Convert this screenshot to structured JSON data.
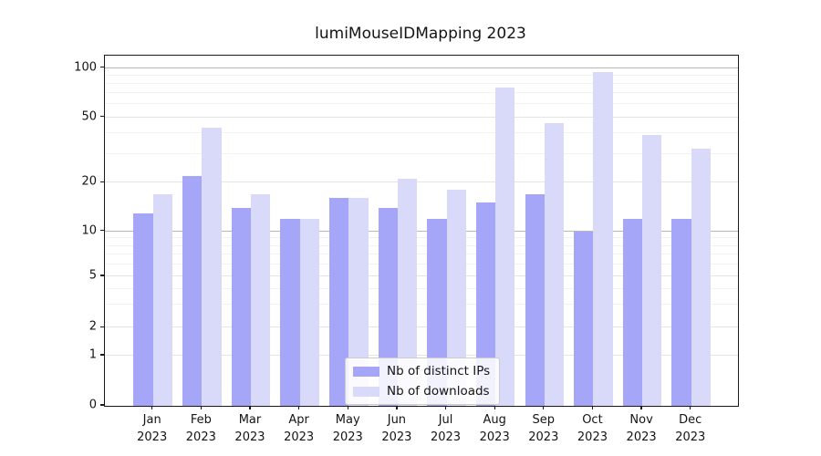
{
  "chart_data": {
    "type": "bar",
    "title": "lumiMouseIDMapping 2023",
    "categories": [
      "Jan 2023",
      "Feb 2023",
      "Mar 2023",
      "Apr 2023",
      "May 2023",
      "Jun 2023",
      "Jul 2023",
      "Aug 2023",
      "Sep 2023",
      "Oct 2023",
      "Nov 2023",
      "Dec 2023"
    ],
    "x_tick_months": [
      "Jan",
      "Feb",
      "Mar",
      "Apr",
      "May",
      "Jun",
      "Jul",
      "Aug",
      "Sep",
      "Oct",
      "Nov",
      "Dec"
    ],
    "x_tick_year": "2023",
    "series": [
      {
        "name": "Nb of distinct IPs",
        "color": "#a6a6f8",
        "values": [
          13,
          22,
          14,
          12,
          16,
          14,
          12,
          15,
          17,
          10,
          12,
          12
        ]
      },
      {
        "name": "Nb of downloads",
        "color": "#d9d9fa",
        "values": [
          17,
          43,
          17,
          12,
          16,
          21,
          18,
          76,
          46,
          95,
          39,
          32
        ]
      }
    ],
    "xlabel": "",
    "ylabel": "",
    "y_scale": "symlog",
    "y_ticks": [
      0,
      1,
      2,
      5,
      10,
      20,
      50,
      100
    ],
    "y_tick_labels": [
      "0",
      "1",
      "2",
      "5",
      "10",
      "20",
      "50",
      "100"
    ],
    "y_minor_ticks": [
      3,
      4,
      6,
      7,
      8,
      9,
      30,
      40,
      60,
      70,
      80,
      90
    ],
    "ylim": [
      0,
      110
    ],
    "grid": true,
    "legend_position": "lower center",
    "background_color": "#ffffff"
  }
}
